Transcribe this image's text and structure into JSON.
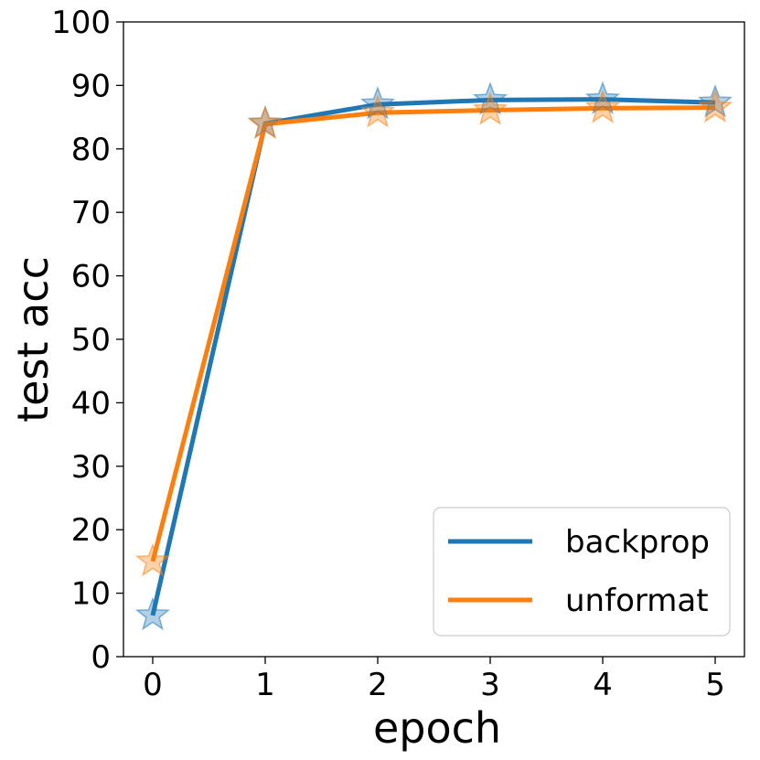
{
  "chart_data": {
    "type": "line",
    "xlabel": "epoch",
    "ylabel": "test acc",
    "xlim": [
      -0.26,
      5.26
    ],
    "ylim": [
      0,
      100
    ],
    "x_ticks": [
      0,
      1,
      2,
      3,
      4,
      5
    ],
    "y_ticks": [
      0,
      10,
      20,
      30,
      40,
      50,
      60,
      70,
      80,
      90,
      100
    ],
    "grid": false,
    "marker": "star",
    "legend_position": "lower-right",
    "series": [
      {
        "name": "backprop",
        "color": "#1f77b4",
        "x": [
          0,
          1,
          2,
          3,
          4,
          5
        ],
        "values": [
          6.5,
          84.0,
          87.0,
          87.7,
          87.8,
          87.3
        ]
      },
      {
        "name": "unformat",
        "color": "#ff7f0e",
        "x": [
          0,
          1,
          2,
          3,
          4,
          5
        ],
        "values": [
          15.0,
          83.9,
          85.7,
          86.1,
          86.4,
          86.5
        ]
      }
    ]
  }
}
